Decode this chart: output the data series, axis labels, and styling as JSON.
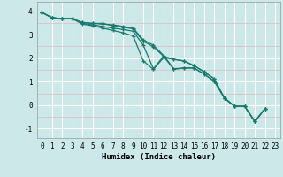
{
  "xlabel": "Humidex (Indice chaleur)",
  "background_color": "#cce8e8",
  "minor_grid_color": "#ddbcbc",
  "major_grid_color": "#ffffff",
  "line_color": "#1a7a6e",
  "xlim": [
    -0.5,
    23.5
  ],
  "ylim": [
    -1.4,
    4.4
  ],
  "yticks": [
    -1,
    0,
    1,
    2,
    3,
    4
  ],
  "xticks": [
    0,
    1,
    2,
    3,
    4,
    5,
    6,
    7,
    8,
    9,
    10,
    11,
    12,
    13,
    14,
    15,
    16,
    17,
    18,
    19,
    20,
    21,
    22,
    23
  ],
  "series": [
    [
      3.95,
      3.72,
      3.68,
      3.68,
      3.48,
      3.42,
      3.35,
      3.28,
      3.22,
      3.15,
      2.55,
      1.55,
      2.08,
      1.95,
      1.88,
      1.68,
      1.42,
      1.12,
      0.3,
      -0.05,
      -0.05,
      -0.7,
      -0.15
    ],
    [
      3.95,
      3.72,
      3.68,
      3.68,
      3.52,
      3.48,
      3.45,
      3.42,
      3.35,
      3.28,
      2.78,
      2.55,
      2.12,
      1.55,
      1.58,
      1.58,
      1.32,
      1.02,
      0.3,
      -0.05,
      -0.05,
      -0.7,
      -0.15
    ],
    [
      3.95,
      3.72,
      3.68,
      3.68,
      3.45,
      3.38,
      3.28,
      3.18,
      3.08,
      2.95,
      1.88,
      1.52,
      2.02,
      1.95,
      1.88,
      1.68,
      1.42,
      1.12,
      0.3,
      -0.05,
      -0.05,
      -0.7,
      -0.15
    ],
    [
      3.95,
      3.72,
      3.68,
      3.68,
      3.52,
      3.48,
      3.48,
      3.38,
      3.32,
      3.25,
      2.72,
      2.48,
      2.08,
      1.52,
      1.58,
      1.58,
      1.32,
      1.02,
      0.3,
      -0.05,
      -0.05,
      -0.7,
      -0.15
    ]
  ],
  "marker": "+",
  "markersize": 3.5,
  "linewidth": 0.9
}
